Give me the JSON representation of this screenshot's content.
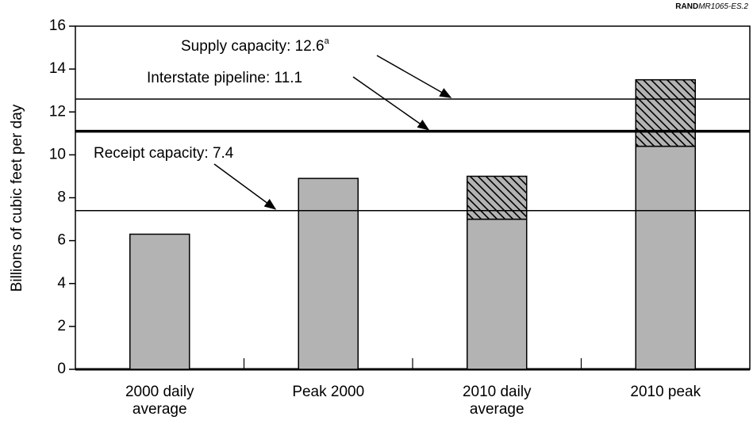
{
  "chart_data": {
    "type": "stacked_bar",
    "source": {
      "org": "RAND",
      "id": "MR1065-ES.2"
    },
    "y_label": "Billions of cubic feet per day",
    "categories": [
      "2000 daily average",
      "Peak 2000",
      "2010 daily average",
      "2010 peak"
    ],
    "series": [
      {
        "color": "#b3b3b3",
        "values": [
          6.3,
          8.9,
          7.0,
          10.4
        ]
      },
      {
        "color": "#b3b3b3",
        "pattern": "hatch",
        "values": [
          null,
          null,
          2.0,
          3.1
        ]
      }
    ],
    "reference_lines": [
      {
        "label": "Supply capacity: 12.6",
        "superscript": "a",
        "value": 12.6,
        "width": 1.5
      },
      {
        "label": "Interstate pipeline: 11.1",
        "value": 11.1,
        "width": 3.5
      },
      {
        "label": "Receipt capacity: 7.4",
        "value": 7.4,
        "width": 1.5
      }
    ],
    "ylim": [
      0,
      16
    ],
    "yticks": [
      0,
      2,
      4,
      6,
      8,
      10,
      12,
      14,
      16
    ]
  }
}
